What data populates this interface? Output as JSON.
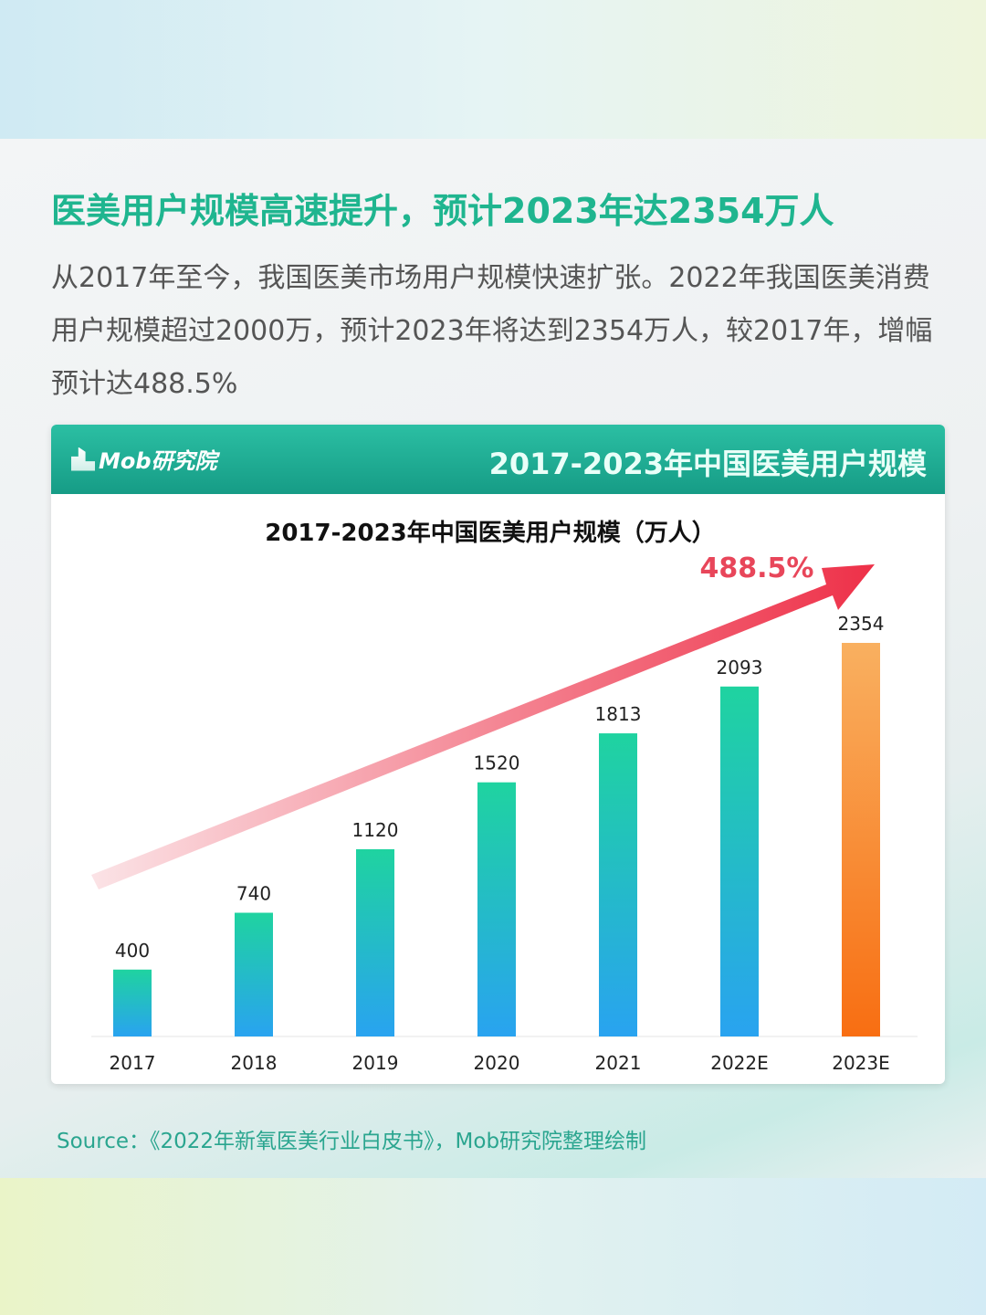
{
  "headline": "医美用户规模高速提升，预计2023年达2354万人",
  "paragraph": "从2017年至今，我国医美市场用户规模快速扩张。2022年我国医美消费用户规模超过2000万，预计2023年将达到2354万人，较2017年，增幅预计达488.5%",
  "card": {
    "logo_text": "Mob研究院",
    "title": "2017-2023年中国医美用户规模"
  },
  "source": "Source：《2022年新氧医美行业白皮书》，Mob研究院整理绘制",
  "chart_data": {
    "type": "bar",
    "title": "2017-2023年中国医美用户规模（万人）",
    "categories": [
      "2017",
      "2018",
      "2019",
      "2020",
      "2021",
      "2022E",
      "2023E"
    ],
    "values": [
      400,
      740,
      1120,
      1520,
      1813,
      2093,
      2354
    ],
    "annotation": "488.5%",
    "ylim": [
      0,
      2354
    ],
    "grid": false,
    "colors": {
      "actual": [
        "#1fd3a0",
        "#29a3f0"
      ],
      "forecast": [
        "#f9b060",
        "#f86e12"
      ],
      "arrow": "#ee3048",
      "annotation": "#e8465a"
    }
  }
}
